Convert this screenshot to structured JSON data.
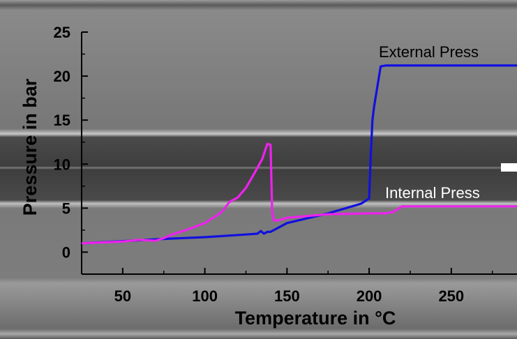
{
  "chart_data": {
    "type": "line",
    "title": "",
    "xlabel": "Temperature in °C",
    "ylabel": "Pressure in bar",
    "xlim": [
      25,
      290
    ],
    "ylim": [
      -2.5,
      25
    ],
    "x_ticks": [
      50,
      100,
      150,
      200,
      250
    ],
    "y_ticks": [
      0,
      5,
      10,
      15,
      20,
      25
    ],
    "grid": false,
    "legend": "none",
    "series": [
      {
        "name": "External Press",
        "color": "#1010e0",
        "x": [
          25,
          50,
          75,
          100,
          125,
          132,
          134,
          136,
          138,
          140,
          150,
          175,
          195,
          200,
          201,
          202,
          203,
          207,
          210,
          250,
          290
        ],
        "y": [
          1.0,
          1.25,
          1.5,
          1.7,
          2.0,
          2.1,
          2.4,
          2.1,
          2.3,
          2.3,
          3.3,
          4.4,
          5.5,
          6.1,
          11,
          15,
          16.5,
          21.1,
          21.2,
          21.2,
          21.2
        ]
      },
      {
        "name": "Internal Press",
        "color": "#ee22ee",
        "x": [
          25,
          50,
          60,
          70,
          75,
          80,
          90,
          100,
          110,
          115,
          120,
          125,
          130,
          135,
          138,
          140,
          141,
          142,
          145,
          150,
          175,
          200,
          210,
          215,
          220,
          250,
          290
        ],
        "y": [
          1.0,
          1.2,
          1.4,
          1.3,
          1.6,
          2.0,
          2.6,
          3.3,
          4.5,
          5.7,
          6.2,
          7.3,
          8.9,
          10.6,
          12.3,
          12.2,
          4.5,
          3.6,
          3.6,
          3.9,
          4.3,
          4.4,
          4.4,
          4.6,
          5.2,
          5.2,
          5.2
        ]
      }
    ],
    "annotations": [
      {
        "text": "External Press",
        "series": "External Press"
      },
      {
        "text": "Internal Press",
        "series": "Internal Press"
      }
    ]
  }
}
